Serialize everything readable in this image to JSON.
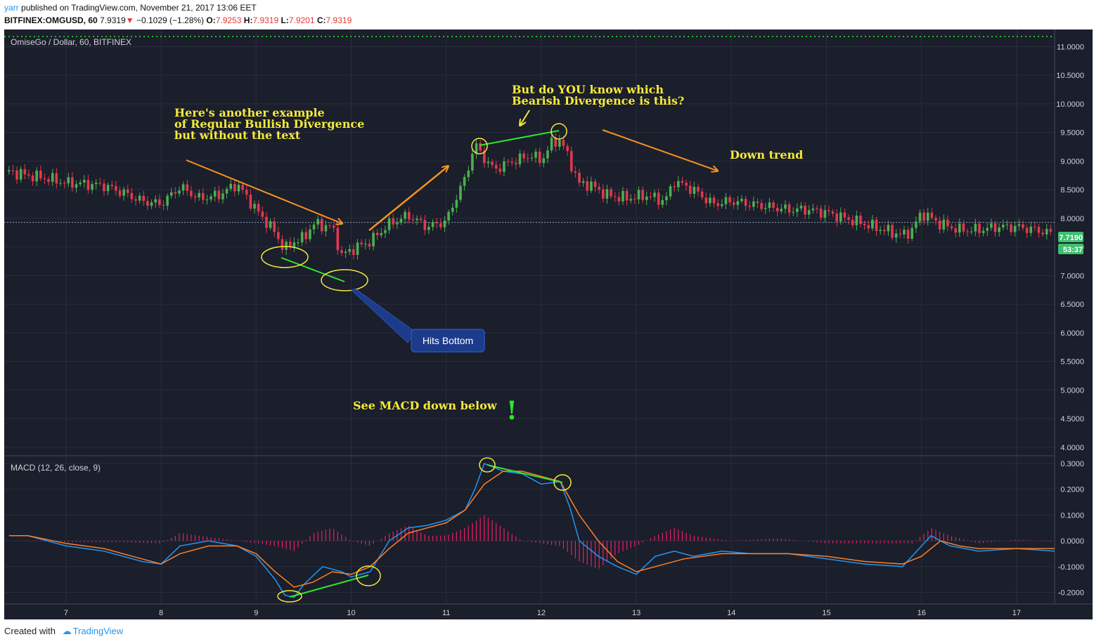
{
  "header": {
    "user": "yarr",
    "published": "published on TradingView.com, November 21, 2017 13:06 EET",
    "symbol": "BITFINEX:OMGUSD, 60",
    "last": "7.9319",
    "change": "−0.1029 (−1.28%)",
    "o_label": "O:",
    "o_value": "7.9253",
    "h_label": "H:",
    "h_value": "7.9319",
    "l_label": "L:",
    "l_value": "7.9201",
    "c_label": "C:",
    "c_value": "7.9319"
  },
  "footer": {
    "created_with": "Created with",
    "brand": "TradingView"
  },
  "colors": {
    "background": "#1b1e2b",
    "grid": "#2a2e3c",
    "up": "#4caf50",
    "down": "#e0394f",
    "macd": "#2196f3",
    "signal": "#ff7f27",
    "hist": "#e91e63",
    "annotation": "#f5ea3a",
    "arrow": "#f7931e",
    "divergence": "#2ee62e",
    "callout": "#1c3b8a",
    "price_badge": "#3fbf6f"
  },
  "chart_data": [
    {
      "type": "candlestick",
      "title": "OmiseGo / Dollar, 60, BITFINEX",
      "x_ticks": [
        "7",
        "8",
        "9",
        "10",
        "11",
        "12",
        "13",
        "14",
        "15",
        "16",
        "17"
      ],
      "x_range": [
        6.35,
        17.4
      ],
      "y_ticks": [
        "11.0000",
        "10.5000",
        "10.0000",
        "9.5000",
        "9.0000",
        "8.5000",
        "8.0000",
        "7.5000",
        "7.0000",
        "6.5000",
        "6.0000",
        "5.5000",
        "5.0000",
        "4.5000",
        "4.0000"
      ],
      "ylim": [
        3.85,
        11.3
      ],
      "grid": true,
      "series": [
        {
          "x": [
            6.4,
            6.6,
            6.8,
            7.0,
            7.2,
            7.4,
            7.6,
            7.8,
            8.0,
            8.2,
            8.4,
            8.6,
            8.8,
            9.0,
            9.2,
            9.3,
            9.4,
            9.5,
            9.6,
            9.8,
            9.9,
            10.0,
            10.2,
            10.4,
            10.6,
            10.8,
            11.0,
            11.1,
            11.2,
            11.3,
            11.4,
            11.5,
            11.7,
            11.9,
            12.0,
            12.1,
            12.2,
            12.3,
            12.4,
            12.5,
            12.7,
            12.9,
            13.1,
            13.3,
            13.4,
            13.6,
            13.8,
            14.0,
            14.2,
            14.4,
            14.6,
            14.8,
            15.0,
            15.2,
            15.4,
            15.6,
            15.8,
            15.9,
            16.0,
            16.2,
            16.4,
            16.6,
            16.8,
            17.0,
            17.2,
            17.4
          ],
          "y": [
            8.82,
            8.75,
            8.7,
            8.62,
            8.6,
            8.57,
            8.45,
            8.3,
            8.25,
            8.55,
            8.35,
            8.4,
            8.6,
            8.15,
            7.75,
            7.45,
            7.6,
            7.65,
            7.9,
            7.85,
            7.35,
            7.45,
            7.6,
            7.9,
            8.05,
            7.85,
            7.95,
            8.35,
            8.7,
            9.3,
            9.05,
            8.85,
            9.0,
            9.1,
            9.0,
            9.3,
            9.38,
            9.0,
            8.6,
            8.6,
            8.4,
            8.35,
            8.4,
            8.3,
            8.65,
            8.5,
            8.25,
            8.3,
            8.25,
            8.2,
            8.15,
            8.15,
            8.1,
            8.0,
            7.9,
            7.8,
            7.7,
            7.8,
            8.1,
            7.9,
            7.8,
            7.8,
            7.85,
            7.85,
            7.8,
            7.72
          ]
        }
      ],
      "current_price": "7.7190",
      "countdown": "53:37",
      "reference_price": 7.93
    },
    {
      "type": "line",
      "title": "MACD (12, 26, close, 9)",
      "y_ticks": [
        "0.3000",
        "0.2000",
        "0.1000",
        "0.0000",
        "-0.1000",
        "-0.2000"
      ],
      "ylim": [
        -0.245,
        0.33
      ],
      "series": [
        {
          "name": "MACD",
          "x": [
            6.4,
            6.6,
            7.0,
            7.4,
            7.8,
            8.0,
            8.2,
            8.5,
            8.8,
            9.0,
            9.2,
            9.3,
            9.4,
            9.5,
            9.7,
            9.9,
            10.0,
            10.2,
            10.4,
            10.6,
            10.8,
            11.0,
            11.2,
            11.3,
            11.4,
            11.6,
            11.8,
            12.0,
            12.2,
            12.3,
            12.4,
            12.6,
            12.8,
            13.0,
            13.2,
            13.4,
            13.6,
            13.9,
            14.2,
            14.6,
            15.0,
            15.4,
            15.8,
            16.0,
            16.1,
            16.3,
            16.6,
            17.0,
            17.4
          ],
          "y": [
            0.02,
            0.02,
            -0.02,
            -0.04,
            -0.08,
            -0.09,
            -0.02,
            0.0,
            -0.02,
            -0.06,
            -0.15,
            -0.21,
            -0.22,
            -0.17,
            -0.1,
            -0.12,
            -0.14,
            -0.12,
            0.0,
            0.05,
            0.06,
            0.08,
            0.12,
            0.2,
            0.3,
            0.27,
            0.26,
            0.22,
            0.23,
            0.13,
            0.0,
            -0.06,
            -0.1,
            -0.13,
            -0.06,
            -0.04,
            -0.06,
            -0.04,
            -0.05,
            -0.05,
            -0.07,
            -0.09,
            -0.1,
            -0.02,
            0.02,
            -0.02,
            -0.04,
            -0.03,
            -0.04
          ]
        },
        {
          "name": "Signal",
          "x": [
            6.4,
            6.6,
            7.0,
            7.4,
            7.8,
            8.0,
            8.2,
            8.5,
            8.8,
            9.0,
            9.2,
            9.4,
            9.6,
            9.8,
            10.0,
            10.2,
            10.4,
            10.6,
            10.8,
            11.0,
            11.2,
            11.4,
            11.6,
            11.8,
            12.0,
            12.2,
            12.4,
            12.6,
            12.8,
            13.0,
            13.2,
            13.5,
            13.9,
            14.2,
            14.6,
            15.0,
            15.4,
            15.8,
            16.0,
            16.2,
            16.4,
            16.6,
            17.0,
            17.4
          ],
          "y": [
            0.02,
            0.02,
            -0.01,
            -0.03,
            -0.07,
            -0.09,
            -0.05,
            -0.02,
            -0.02,
            -0.05,
            -0.12,
            -0.18,
            -0.16,
            -0.12,
            -0.13,
            -0.1,
            -0.03,
            0.03,
            0.05,
            0.07,
            0.12,
            0.22,
            0.27,
            0.27,
            0.25,
            0.23,
            0.1,
            0.0,
            -0.08,
            -0.12,
            -0.1,
            -0.07,
            -0.05,
            -0.05,
            -0.05,
            -0.06,
            -0.08,
            -0.09,
            -0.06,
            0.0,
            -0.02,
            -0.03,
            -0.03,
            -0.03
          ]
        },
        {
          "name": "Histogram",
          "x": [
            6.5,
            7.0,
            7.5,
            8.0,
            8.2,
            8.4,
            8.6,
            8.8,
            9.0,
            9.2,
            9.4,
            9.6,
            9.8,
            10.0,
            10.2,
            10.4,
            10.6,
            10.8,
            11.0,
            11.2,
            11.4,
            11.6,
            11.8,
            12.0,
            12.2,
            12.4,
            12.6,
            12.8,
            13.0,
            13.2,
            13.4,
            13.6,
            13.8,
            14.0,
            14.5,
            15.0,
            15.5,
            15.9,
            16.1,
            16.3,
            16.6,
            17.0,
            17.4
          ],
          "y": [
            0.0,
            -0.005,
            -0.005,
            -0.01,
            0.03,
            0.02,
            0.01,
            0.0,
            -0.01,
            -0.02,
            -0.04,
            0.03,
            0.05,
            0.0,
            -0.02,
            0.03,
            0.06,
            0.02,
            0.02,
            0.05,
            0.1,
            0.05,
            0.0,
            -0.01,
            -0.02,
            -0.08,
            -0.11,
            -0.05,
            -0.02,
            0.02,
            0.05,
            0.02,
            0.01,
            0.0,
            0.01,
            -0.01,
            -0.01,
            -0.01,
            0.05,
            0.02,
            -0.01,
            0.005,
            -0.005
          ]
        }
      ]
    }
  ],
  "annotations": {
    "bullish_text_1": "Here's another example",
    "bullish_text_2": "of Regular Bullish Divergence",
    "bullish_text_3": "but without the text",
    "bearish_text_1": "But do YOU know which",
    "bearish_text_2": "Bearish Divergence is this?",
    "down_trend": "Down trend",
    "see_macd": "See MACD down below",
    "exclamation": "!",
    "callout": "Hits Bottom"
  }
}
